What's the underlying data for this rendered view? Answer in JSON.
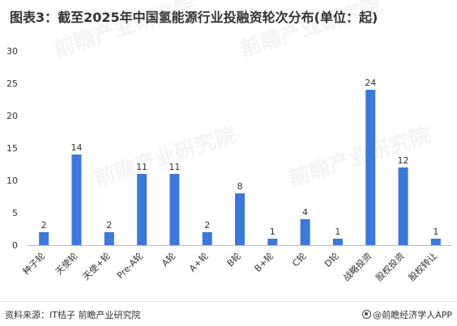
{
  "title": "图表3：截至2025年中国氢能源行业投融资轮次分布(单位：起)",
  "footer": {
    "source": "资料来源：IT桔子 前瞻产业研究院",
    "brand": "@前瞻经济学人APP"
  },
  "watermark": "前瞻产业研究院",
  "colors": {
    "bar": "#3b78d9",
    "axis": "#bbbbbb",
    "text": "#333333"
  },
  "chart_data": {
    "type": "bar",
    "title": "图表3：截至2025年中国氢能源行业投融资轮次分布(单位：起)",
    "categories": [
      "种子轮",
      "天使轮",
      "天使+轮",
      "Pre-A轮",
      "A轮",
      "A+轮",
      "B轮",
      "B+轮",
      "C轮",
      "D轮",
      "战略投资",
      "股权投资",
      "股权转让"
    ],
    "values": [
      2,
      14,
      2,
      11,
      11,
      2,
      8,
      1,
      4,
      1,
      24,
      12,
      1
    ],
    "ylim": [
      0,
      30
    ],
    "yticks": [
      0,
      5,
      10,
      15,
      20,
      25,
      30
    ],
    "grid": false,
    "xlabel": "",
    "ylabel": ""
  }
}
